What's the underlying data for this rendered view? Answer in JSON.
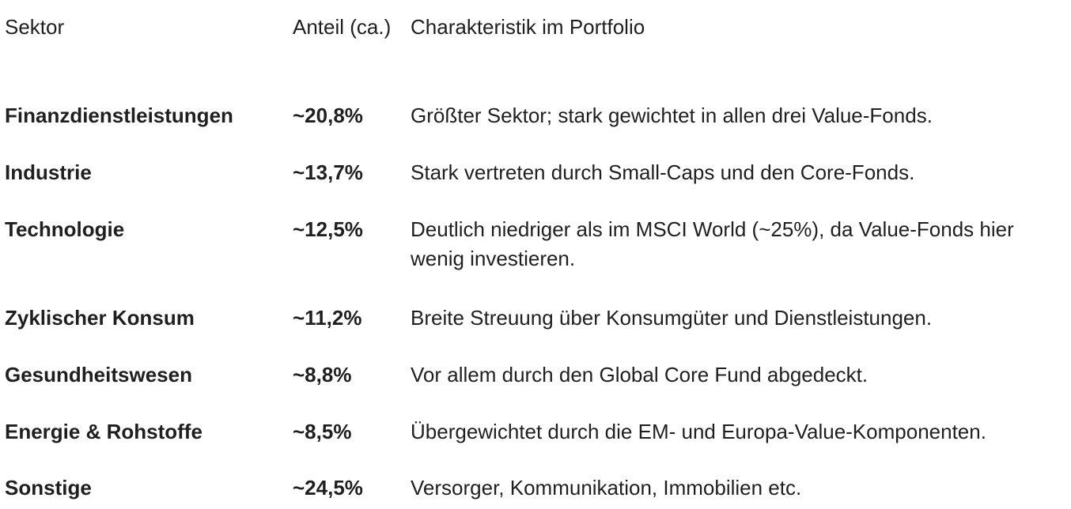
{
  "table": {
    "headers": {
      "sector": "Sektor",
      "share": "Anteil (ca.)",
      "description": "Charakteristik im Portfolio"
    },
    "rows": [
      {
        "sector": "Finanzdienstleistungen",
        "share": "~20,8%",
        "description": "Größter Sektor; stark gewichtet in allen drei Value-Fonds."
      },
      {
        "sector": "Industrie",
        "share": "~13,7%",
        "description": "Stark vertreten durch Small-Caps und den Core-Fonds."
      },
      {
        "sector": "Technologie",
        "share": "~12,5%",
        "description": "Deutlich niedriger als im MSCI World (~25%), da Value-Fonds hier wenig investieren."
      },
      {
        "sector": "Zyklischer Konsum",
        "share": "~11,2%",
        "description": "Breite Streuung über Konsumgüter und Dienstleistungen."
      },
      {
        "sector": "Gesundheitswesen",
        "share": "~8,8%",
        "description": "Vor allem durch den Global Core Fund abgedeckt."
      },
      {
        "sector": "Energie & Rohstoffe",
        "share": "~8,5%",
        "description": "Übergewichtet durch die EM- und Europa-Value-Komponenten."
      },
      {
        "sector": "Sonstige",
        "share": "~24,5%",
        "description": "Versorger, Kommunikation, Immobilien etc."
      }
    ]
  }
}
